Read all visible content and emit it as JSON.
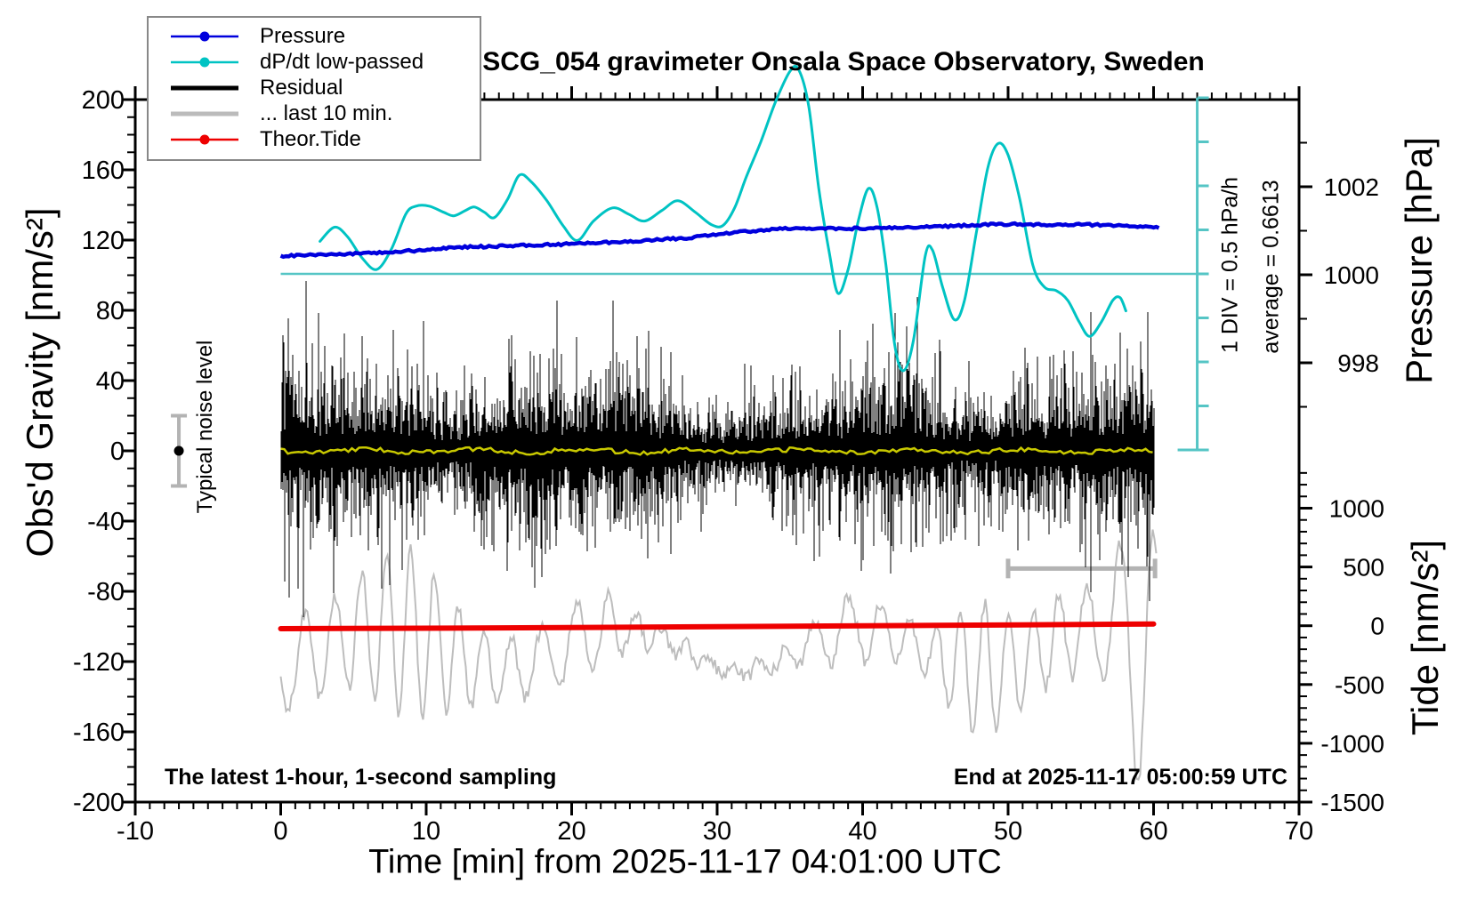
{
  "chart_data": {
    "type": "line",
    "title": "SCG_054 gravimeter Onsala Space Observatory, Sweden",
    "xlabel": "Time [min] from 2025-11-17 04:01:00 UTC",
    "ylabel_left": "Obs'd Gravity [nm/s²]",
    "ylabel_right_top": "Pressure [hPa]",
    "ylabel_right_bottom": "Tide [nm/s²]",
    "annotations": {
      "sampling_note": "The latest 1-hour, 1-second sampling",
      "end_note": "End at 2025-11-17 05:00:59 UTC",
      "div_scale_label": "1 DIV = 0.5 hPa/h",
      "average_label": "average = 0.6613",
      "noise_label": "Typical noise level"
    },
    "axes": {
      "x": {
        "min": -10,
        "max": 70,
        "major_ticks": [
          -10,
          0,
          10,
          20,
          30,
          40,
          50,
          60,
          70
        ],
        "minor_step": 1,
        "grid": false
      },
      "y_left_gravity": {
        "min": -200,
        "max": 200,
        "major_ticks": [
          200,
          160,
          120,
          80,
          40,
          0,
          -40,
          -80,
          -120,
          -160,
          -200
        ],
        "minor_step": 10
      },
      "y_right_pressure": {
        "major_ticks": [
          1002,
          1000,
          998
        ],
        "minor_ticks": [
          1003,
          1001,
          999,
          997
        ],
        "unit": "hPa"
      },
      "y_right_tide": {
        "major_ticks": [
          1000,
          500,
          0,
          -500,
          -1000,
          -1500
        ],
        "minor_step": 100,
        "minor_range": [
          -1400,
          1300
        ],
        "unit": "nm/s²"
      }
    },
    "legend": [
      {
        "label": "Pressure",
        "color": "#0000dd",
        "thick": false,
        "dot": true
      },
      {
        "label": "dP/dt low-passed",
        "color": "#00c3c3",
        "thick": false,
        "dot": true
      },
      {
        "label": "Residual",
        "color": "#000000",
        "thick": true,
        "dot": false
      },
      {
        "label": "... last 10 min.",
        "color": "#bbbbbb",
        "thick": true,
        "dot": false
      },
      {
        "label": "Theor.Tide",
        "color": "#ee0000",
        "thick": false,
        "dot": true
      }
    ],
    "colors": {
      "pressure": "#0000dd",
      "dpdt": "#00c3c3",
      "dpdt_reference": "#55c5c5",
      "residual": "#000000",
      "residual_last10": "#bdbdbd",
      "theor_tide": "#ee0000",
      "residual_smoothed": "#c8c800",
      "span_bar": "#b3b3b3",
      "noise_errorbar": "#b3b3b3"
    },
    "series": {
      "pressure": {
        "units": "hPa",
        "t_min": [
          0,
          4,
          8,
          12,
          16,
          20,
          24,
          28,
          31,
          34,
          37,
          40,
          43,
          46,
          49,
          52,
          55,
          58,
          60.5
        ],
        "values": [
          1000.42,
          1000.47,
          1000.52,
          1000.62,
          1000.66,
          1000.7,
          1000.76,
          1000.84,
          1000.95,
          1001.04,
          1001.06,
          1001.05,
          1001.07,
          1001.1,
          1001.15,
          1001.14,
          1001.14,
          1001.12,
          1001.08
        ]
      },
      "dpdt_lowpassed": {
        "units": "hPa/h",
        "div_value": 0.5,
        "average": 0.6613,
        "t_min": [
          2.7,
          3.7,
          4.6,
          5.6,
          6.6,
          7.6,
          8.6,
          9.3,
          10.2,
          11.2,
          11.9,
          12.7,
          13.3,
          14.0,
          14.7,
          15.6,
          16.4,
          17.2,
          18.3,
          19.4,
          20.4,
          21.5,
          22.8,
          23.9,
          25.0,
          26.2,
          27.3,
          28.5,
          29.6,
          30.4,
          31.2,
          32.0,
          33.0,
          34.0,
          35.0,
          35.6,
          36.3,
          37.0,
          37.7,
          38.3,
          39.0,
          39.7,
          40.4,
          41.0,
          41.6,
          42.2,
          42.8,
          43.5,
          44.3,
          44.8,
          45.5,
          46.3,
          47.0,
          47.8,
          48.6,
          49.3,
          50.0,
          50.8,
          51.7,
          52.5,
          53.3,
          54.1,
          54.9,
          55.6,
          56.4,
          57.2,
          57.7,
          58.1
        ],
        "values": [
          0.37,
          0.53,
          0.42,
          0.18,
          0.05,
          0.28,
          0.68,
          0.77,
          0.77,
          0.7,
          0.66,
          0.72,
          0.76,
          0.7,
          0.64,
          0.85,
          1.12,
          1.05,
          0.83,
          0.55,
          0.38,
          0.6,
          0.75,
          0.68,
          0.6,
          0.72,
          0.83,
          0.7,
          0.56,
          0.55,
          0.75,
          1.1,
          1.5,
          1.95,
          2.3,
          2.32,
          1.9,
          0.95,
          0.25,
          -0.22,
          0.05,
          0.6,
          0.97,
          0.75,
          0.1,
          -0.8,
          -1.1,
          -0.75,
          0.2,
          0.27,
          -0.15,
          -0.52,
          -0.3,
          0.45,
          1.2,
          1.48,
          1.35,
          0.85,
          0.1,
          -0.15,
          -0.19,
          -0.3,
          -0.55,
          -0.71,
          -0.55,
          -0.3,
          -0.27,
          -0.42
        ]
      },
      "theor_tide": {
        "units": "nm/s²",
        "t_min": [
          0,
          15,
          30,
          45,
          60
        ],
        "values": [
          -25,
          -18,
          -8,
          3,
          15
        ]
      },
      "residual": {
        "description": "1-second residual noise band, 0-60 min, centred on 0",
        "mean_nm_s2": 0,
        "typical_peak_nm_s2": 50,
        "max_spike_nm_s2": 100,
        "seed": 20251117
      },
      "residual_smoothed": {
        "description": "yellow smoothed residual line",
        "mean_nm_s2": 0,
        "seed": 7
      },
      "residual_last10": {
        "description": "last 10 min of residual re-plotted across full hour (grey)",
        "center_gravity_nm_s2": -113,
        "seed": 424242
      },
      "noise_errorbar": {
        "t_min": -7,
        "center_nm_s2": 0,
        "half_range_nm_s2": 20
      },
      "last10_span_bar": {
        "t_start_min": 50,
        "t_end_min": 60.1,
        "gravity_nm_s2": -67
      }
    }
  }
}
